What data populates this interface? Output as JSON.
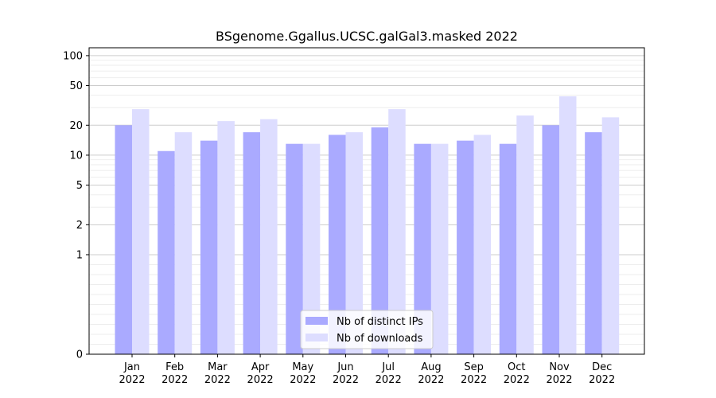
{
  "chart_data": {
    "type": "bar",
    "title": "BSgenome.Ggallus.UCSC.galGal3.masked 2022",
    "xlabel": "",
    "ylabel": "",
    "y_scale": "symlog",
    "ylim": [
      0,
      120
    ],
    "y_ticks": [
      0,
      1,
      2,
      5,
      10,
      20,
      50,
      100
    ],
    "categories": [
      "Jan\n2022",
      "Feb\n2022",
      "Mar\n2022",
      "Apr\n2022",
      "May\n2022",
      "Jun\n2022",
      "Jul\n2022",
      "Aug\n2022",
      "Sep\n2022",
      "Oct\n2022",
      "Nov\n2022",
      "Dec\n2022"
    ],
    "series": [
      {
        "name": "Nb of distinct IPs",
        "color": "#aaaaff",
        "values": [
          20,
          11,
          14,
          17,
          13,
          16,
          19,
          13,
          14,
          13,
          20,
          17
        ]
      },
      {
        "name": "Nb of downloads",
        "color": "#ddddff",
        "values": [
          29,
          17,
          22,
          23,
          13,
          17,
          29,
          13,
          16,
          25,
          39,
          24
        ]
      }
    ],
    "grid": true,
    "legend_position": "lower center"
  }
}
